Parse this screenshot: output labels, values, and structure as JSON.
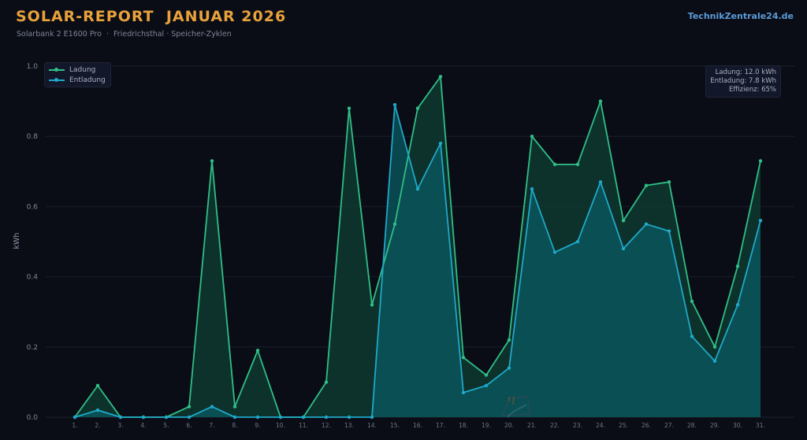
{
  "header": {
    "title": "SOLAR-REPORT  JANUAR 2026",
    "subtitle": "Solarbank 2 E1600 Pro  ·  Friedrichsthal · Speicher-Zyklen",
    "brand": "TechnikZentrale24.de"
  },
  "stats_box": {
    "line1": "Ladung: 12.0 kWh",
    "line2": "Entladung: 7.8 kWh",
    "line3": "Effizienz: 65%"
  },
  "colors": {
    "background": "#0b0d16",
    "title": "#e9a23b",
    "brand": "#5a9bd8",
    "ladung": "#2fbf86",
    "entladung": "#1fa8c9",
    "grid": "#1a1e2c"
  },
  "chart_data": {
    "type": "area",
    "title": "",
    "xlabel": "",
    "ylabel": "kWh",
    "ylim": [
      0,
      1.0
    ],
    "yticks": [
      "0.0",
      "0.2",
      "0.4",
      "0.6",
      "0.8",
      "1.0"
    ],
    "categories": [
      "1.",
      "2.",
      "3.",
      "4.",
      "5.",
      "6.",
      "7.",
      "8.",
      "9.",
      "10.",
      "11.",
      "12.",
      "13.",
      "14.",
      "15.",
      "16.",
      "17.",
      "18.",
      "19.",
      "20.",
      "21.",
      "22.",
      "23.",
      "24.",
      "25.",
      "26.",
      "27.",
      "28.",
      "29.",
      "30.",
      "31."
    ],
    "grid": true,
    "legend_position": "top-left",
    "series": [
      {
        "name": "Ladung",
        "color": "#2fbf86",
        "values": [
          0,
          0.09,
          0,
          0,
          0,
          0.03,
          0.73,
          0.03,
          0.19,
          0,
          0,
          0.1,
          0.88,
          0.32,
          0.55,
          0.88,
          0.97,
          0.17,
          0.12,
          0.22,
          0.8,
          0.72,
          0.72,
          0.9,
          0.56,
          0.66,
          0.67,
          0.33,
          0.2,
          0.43,
          0.73
        ]
      },
      {
        "name": "Entladung",
        "color": "#1fa8c9",
        "values": [
          0,
          0.02,
          0,
          0,
          0,
          0,
          0.03,
          0,
          0,
          0,
          0,
          0,
          0,
          0,
          0.89,
          0.65,
          0.78,
          0.07,
          0.09,
          0.14,
          0.65,
          0.47,
          0.5,
          0.67,
          0.48,
          0.55,
          0.53,
          0.23,
          0.16,
          0.32,
          0.56
        ]
      }
    ]
  }
}
